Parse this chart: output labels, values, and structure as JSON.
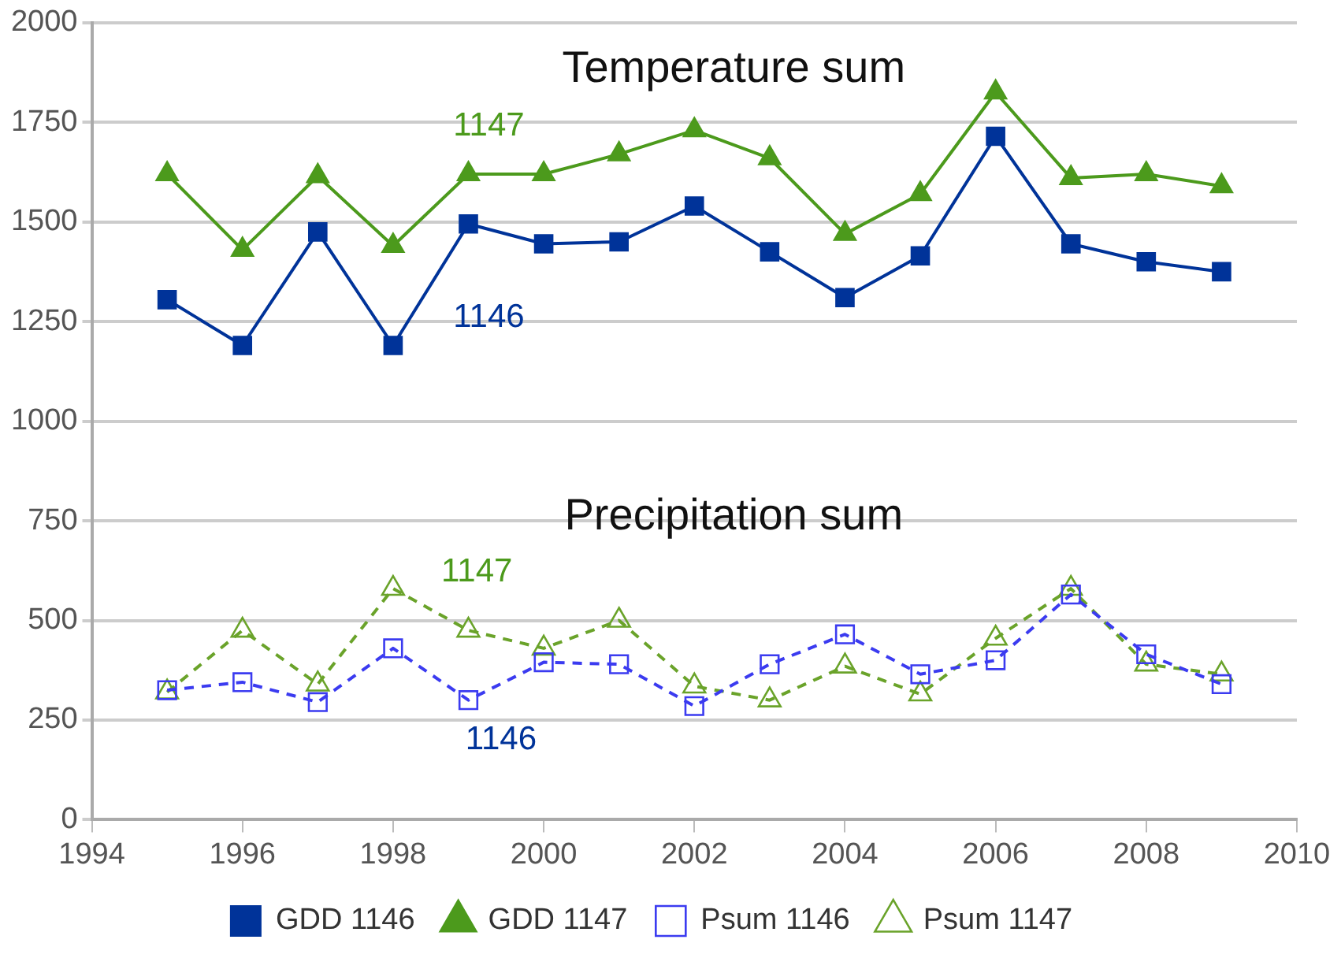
{
  "chart_data": {
    "type": "line",
    "x": [
      1995,
      1996,
      1997,
      1998,
      1999,
      2000,
      2001,
      2002,
      2003,
      2004,
      2005,
      2006,
      2007,
      2008,
      2009
    ],
    "series": [
      {
        "name": "GDD 1146",
        "color": "#003399",
        "marker": "square",
        "line_style": "solid",
        "values": [
          1305,
          1190,
          1475,
          1190,
          1495,
          1445,
          1450,
          1540,
          1425,
          1310,
          1415,
          1715,
          1445,
          1400,
          1375
        ]
      },
      {
        "name": "GDD 1147",
        "color": "#4c9a1c",
        "marker": "triangle",
        "line_style": "solid",
        "values": [
          1620,
          1430,
          1615,
          1440,
          1620,
          1620,
          1670,
          1730,
          1660,
          1470,
          1570,
          1825,
          1610,
          1620,
          1590
        ]
      },
      {
        "name": "Psum 1146",
        "color": "#3b3bf0",
        "marker": "square",
        "line_style": "dashed",
        "values": [
          325,
          345,
          295,
          430,
          300,
          395,
          390,
          285,
          390,
          465,
          365,
          400,
          565,
          415,
          340
        ]
      },
      {
        "name": "Psum 1147",
        "color": "#6aa32a",
        "marker": "triangle",
        "line_style": "dashed",
        "values": [
          320,
          475,
          340,
          580,
          475,
          430,
          500,
          335,
          300,
          385,
          315,
          455,
          580,
          390,
          365
        ]
      }
    ],
    "xlim": [
      1994,
      2010
    ],
    "xticks": [
      1994,
      1996,
      1998,
      2000,
      2002,
      2004,
      2006,
      2008,
      2010
    ],
    "ylim": [
      0,
      2000
    ],
    "yticks": [
      0,
      250,
      500,
      750,
      1000,
      1250,
      1500,
      1750,
      2000
    ],
    "grid": "y",
    "legend": "bottom",
    "annotations": [
      "Temperature sum",
      "Precipitation sum",
      "1147",
      "1146",
      "1147",
      "1146"
    ]
  }
}
